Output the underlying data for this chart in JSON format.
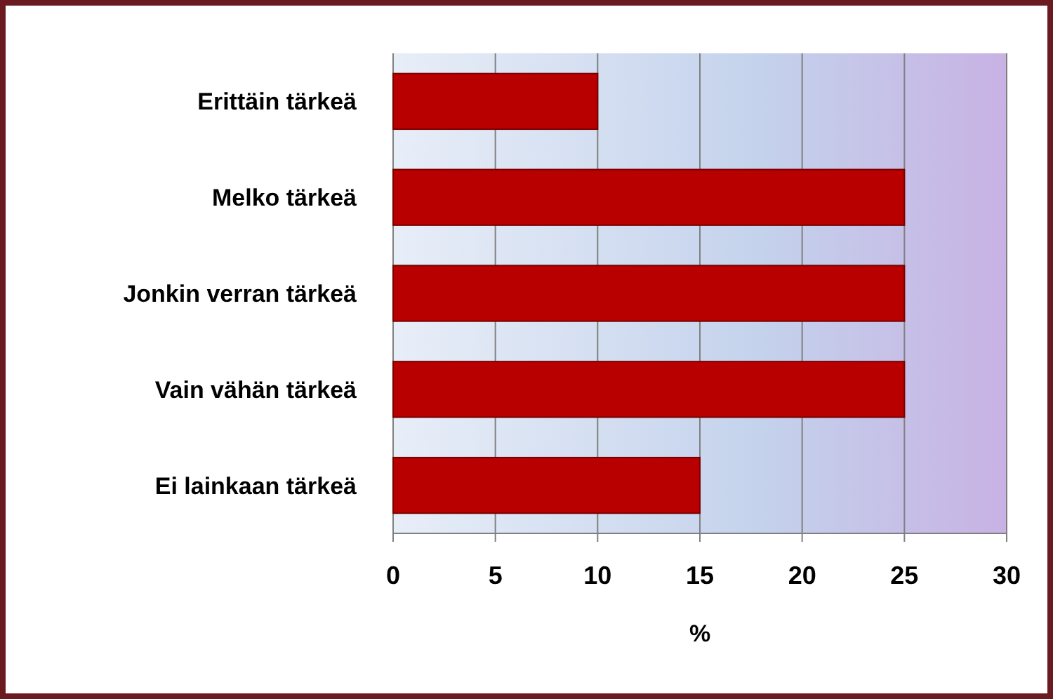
{
  "chart_data": {
    "type": "bar",
    "orientation": "horizontal",
    "categories": [
      "Erittäin tärkeä",
      "Melko tärkeä",
      "Jonkin verran tärkeä",
      "Vain vähän tärkeä",
      "Ei lainkaan tärkeä"
    ],
    "values": [
      10,
      25,
      25,
      25,
      15
    ],
    "color": "#b80000",
    "xlim": [
      0,
      30
    ],
    "xticks": [
      0,
      5,
      10,
      15,
      20,
      25,
      30
    ],
    "xlabel": "%",
    "grid": "x"
  }
}
